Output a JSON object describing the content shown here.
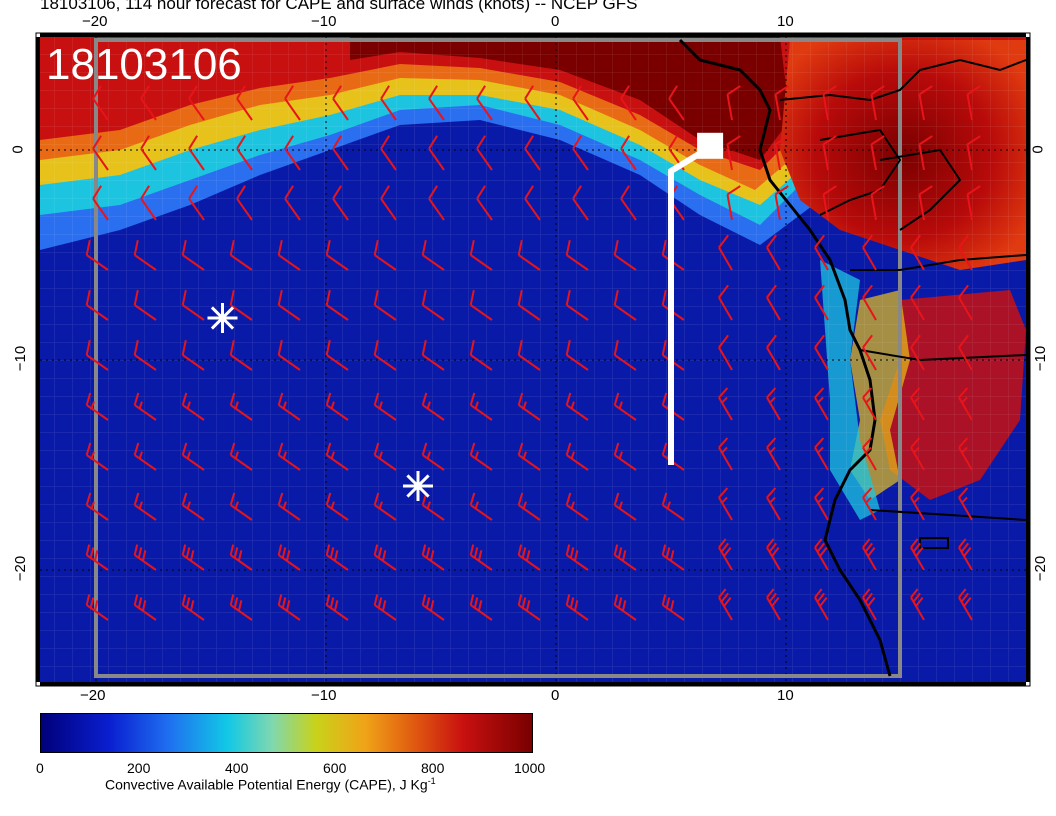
{
  "title": "18103106, 114 hour forecast for CAPE and surface winds (knots) -- NCEP GFS",
  "stamp": "18103106",
  "axes": {
    "bottom_ticks": [
      "−20",
      "−10",
      "0",
      "10"
    ],
    "top_ticks": [
      "−20",
      "−10",
      "0",
      "10"
    ],
    "left_ticks": [
      "0",
      "−10",
      "−20"
    ],
    "right_ticks": [
      "0",
      "−10",
      "−20"
    ]
  },
  "colorbar": {
    "ticks": [
      "0",
      "200",
      "400",
      "600",
      "800",
      "1000"
    ],
    "label": "Convective Available Potential Energy (CAPE), J Kg",
    "label_sup": "-1",
    "min": 0,
    "max": 1000
  },
  "colors": {
    "wind_barbs": "#e8141a",
    "track": "#ffffff",
    "coast": "#000000"
  },
  "markers": {
    "stars": [
      {
        "lon": -14.5,
        "lat": -8
      },
      {
        "lon": -6,
        "lat": -16
      }
    ],
    "track": [
      {
        "lon": 5,
        "lat": -15
      },
      {
        "lon": 5,
        "lat": -1
      },
      {
        "lon": 6.5,
        "lat": 0
      }
    ],
    "square": {
      "lon": 6.7,
      "lat": 0.2
    }
  }
}
